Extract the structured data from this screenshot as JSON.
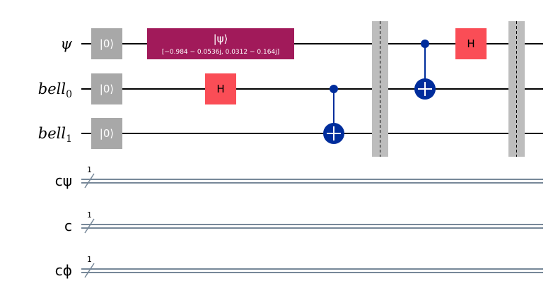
{
  "qubits": [
    {
      "id": "psi",
      "name": "ψ",
      "subscript": ""
    },
    {
      "id": "bell0",
      "name": "bell",
      "subscript": "0"
    },
    {
      "id": "bell1",
      "name": "bell",
      "subscript": "1"
    }
  ],
  "clbits": [
    {
      "id": "cpsi",
      "name": "cψ",
      "width": "1"
    },
    {
      "id": "c",
      "name": "c",
      "width": "1"
    },
    {
      "id": "cphi",
      "name": "cϕ",
      "width": "1"
    }
  ],
  "gates": {
    "reset_label": "|0⟩",
    "init_label": "|ψ⟩",
    "init_params": "[−0.984 − 0.0536j, 0.0312 − 0.164j]",
    "h_label": "H"
  },
  "colors": {
    "init": "#a11a5a",
    "hadamard": "#fa4d56",
    "reset": "#a8a8a8",
    "control": "#002d9c",
    "barrier": "#bdbdbd",
    "classical_wire": "#778899"
  }
}
